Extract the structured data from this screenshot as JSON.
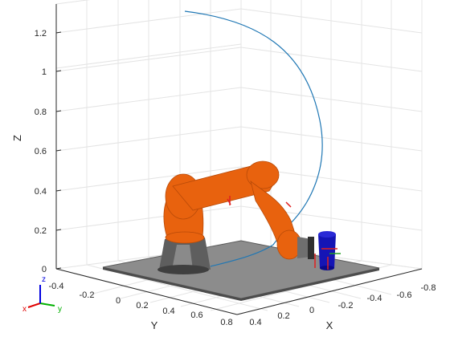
{
  "figure": {
    "background_color": "#ffffff",
    "grid": true,
    "trajectory_color": "#1f77b4",
    "robot_color": "#e8620e",
    "axes": {
      "z": {
        "label": "Z",
        "ticks": [
          "0",
          "0.2",
          "0.4",
          "0.6",
          "0.8",
          "1",
          "1.2"
        ]
      },
      "y": {
        "label": "Y",
        "ticks": [
          "-0.4",
          "-0.2",
          "0",
          "0.2",
          "0.4",
          "0.6",
          "0.8"
        ]
      },
      "x": {
        "label": "X",
        "ticks": [
          "0.4",
          "0.2",
          "0",
          "-0.2",
          "-0.4",
          "-0.6",
          "-0.8"
        ]
      }
    },
    "triad": {
      "x": "x",
      "y": "y",
      "z": "z",
      "x_color": "#e00000",
      "y_color": "#00b000",
      "z_color": "#0000e0"
    }
  }
}
